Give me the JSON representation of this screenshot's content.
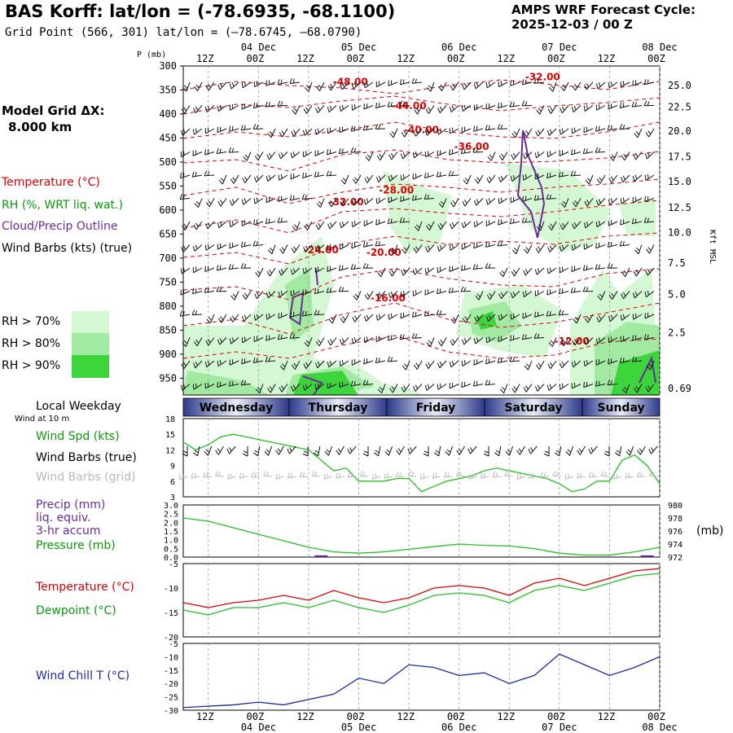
{
  "header": {
    "title": "BAS Korff:  lat/lon = (-78.6935, -68.1100)",
    "subtitle": "Grid Point (566, 301) lat/lon = (–78.6745, –68.0790)",
    "cycle_line1": "AMPS WRF Forecast Cycle:",
    "cycle_line2": "2025-12-03 / 00  Z",
    "grid_line1": "Model Grid ΔX:",
    "grid_line2": "8.000 km"
  },
  "legend": {
    "temperature": "Temperature (°C)",
    "rh": "RH (%, WRT liq. wat.)",
    "cloud": "Cloud/Precip Outline",
    "wind": "Wind Barbs (kts) (true)",
    "rh70": "RH > 70%",
    "rh80": "RH > 80%",
    "rh90": "RH > 90%",
    "color_rh70": "#d4f7d4",
    "color_rh80": "#a2eaa2",
    "color_rh90": "#3cd63c"
  },
  "time_axis": {
    "top_dates": [
      "04 Dec",
      "05 Dec",
      "06 Dec",
      "07 Dec",
      "08 Dec"
    ],
    "top_hours": [
      "12Z",
      "00Z",
      "12Z",
      "00Z",
      "12Z",
      "00Z",
      "12Z",
      "00Z",
      "12Z",
      "00Z"
    ],
    "bottom_hours": [
      "12Z",
      "00Z",
      "12Z",
      "00Z",
      "12Z",
      "00Z",
      "12Z",
      "00Z",
      "12Z",
      "00Z"
    ],
    "bottom_dates": [
      "04 Dec",
      "05 Dec",
      "06 Dec",
      "07 Dec",
      "08 Dec"
    ],
    "weekday_title": "Local Weekday",
    "weekdays": [
      "Wednesday",
      "Thursday",
      "Friday",
      "Saturday",
      "Sunday"
    ]
  },
  "labels": {
    "p_axis_title": "P (mb)",
    "height_axis_title": "Kft MSL",
    "wind10": "Wind at 10 m",
    "wind_spd": "Wind Spd (kts)",
    "wind_barbs_true": "Wind Barbs (true)",
    "wind_barbs_grid": "Wind Barbs (grid)",
    "precip1": "Precip (mm)",
    "precip2": "liq. equiv.",
    "precip3": "3-hr accum",
    "pressure": "Pressure (mb)",
    "pressure_unit": "(mb)",
    "temperature": "Temperature (°C)",
    "dewpoint": "Dewpoint (°C)",
    "windchill": "Wind Chill T (°C)"
  },
  "chart_data": [
    {
      "type": "line",
      "panel": "cross-section",
      "x_hours": [
        6,
        120
      ],
      "pressure_ticks": [
        300,
        350,
        400,
        450,
        500,
        550,
        600,
        650,
        700,
        750,
        800,
        850,
        900,
        950
      ],
      "height_ticks": [
        "25.0",
        "22.5",
        "20.0",
        "17.5",
        "15.0",
        "12.5",
        "10.0",
        "7.5",
        "5.0",
        "2.5",
        "0.69"
      ],
      "temp_labels": [
        {
          "text": "-48.00",
          "t": 46,
          "p": 340
        },
        {
          "text": "-44.00",
          "t": 60,
          "p": 390
        },
        {
          "text": "-40.00",
          "t": 63,
          "p": 440
        },
        {
          "text": "-36.00",
          "t": 75,
          "p": 475
        },
        {
          "text": "-32.00",
          "t": 92,
          "p": 330
        },
        {
          "text": "-32.00",
          "t": 45,
          "p": 590
        },
        {
          "text": "-28.00",
          "t": 57,
          "p": 565
        },
        {
          "text": "-24.00",
          "t": 39,
          "p": 690
        },
        {
          "text": "-20.00",
          "t": 54,
          "p": 695
        },
        {
          "text": "-16.00",
          "t": 55,
          "p": 790
        },
        {
          "text": "-12.00",
          "t": 99,
          "p": 880
        }
      ]
    },
    {
      "type": "line",
      "panel": "wind-speed",
      "ylim": [
        3,
        18
      ],
      "yticks": [
        3,
        6,
        9,
        12,
        15,
        18
      ],
      "x_hours": [
        6,
        9,
        12,
        15,
        18,
        21,
        24,
        27,
        30,
        33,
        36,
        39,
        42,
        45,
        48,
        51,
        54,
        57,
        60,
        63,
        66,
        69,
        72,
        75,
        78,
        81,
        84,
        87,
        90,
        93,
        96,
        99,
        102,
        105,
        108,
        111,
        114,
        117,
        120
      ],
      "series": [
        {
          "values": [
            13.5,
            12,
            13,
            14.5,
            15,
            14.5,
            14,
            13.5,
            13,
            12.5,
            12,
            10,
            8,
            8.5,
            6,
            6,
            6,
            6.5,
            6.5,
            4,
            5,
            6,
            6.5,
            7,
            8,
            8.5,
            8,
            7.5,
            7,
            6.5,
            5.5,
            4,
            4.5,
            6,
            6,
            10,
            11,
            9,
            5.5
          ]
        }
      ]
    },
    {
      "type": "line",
      "panel": "precip-pressure",
      "y_left_ticks": [
        "0.0",
        "0.5",
        "1.0",
        "1.5",
        "2.0",
        "2.5",
        "3.0"
      ],
      "y_right_ticks": [
        972,
        974,
        976,
        978,
        980
      ],
      "pressure_hours": [
        6,
        12,
        18,
        24,
        30,
        36,
        42,
        48,
        54,
        60,
        66,
        72,
        78,
        84,
        90,
        96,
        102,
        108,
        114,
        120
      ],
      "pressure_values": [
        978,
        977.5,
        976.5,
        975.5,
        974.5,
        973.5,
        972.8,
        972.6,
        972.8,
        973.2,
        973.6,
        974,
        973.8,
        973.7,
        973.3,
        972.6,
        972.3,
        972.3,
        972.8,
        973.5
      ],
      "precip_bars": [
        {
          "t": 39,
          "mm": 0.1
        },
        {
          "t": 117,
          "mm": 0.1
        }
      ]
    },
    {
      "type": "line",
      "panel": "temperature-dewpoint",
      "ylim": [
        -20,
        -5
      ],
      "x_hours": [
        6,
        12,
        18,
        24,
        30,
        36,
        42,
        48,
        54,
        60,
        66,
        72,
        78,
        84,
        90,
        96,
        102,
        108,
        114,
        120
      ],
      "series": [
        {
          "name": "Temperature",
          "values": [
            -13,
            -14,
            -13,
            -12.5,
            -11.5,
            -12.5,
            -10.5,
            -12,
            -13,
            -12,
            -10,
            -9.5,
            -10,
            -11.5,
            -9,
            -8,
            -9.5,
            -8,
            -6.5,
            -6
          ]
        },
        {
          "name": "Dewpoint",
          "values": [
            -14.5,
            -15.5,
            -14,
            -14,
            -13,
            -14,
            -12.5,
            -14,
            -15,
            -13.5,
            -11.5,
            -11,
            -11.5,
            -13,
            -10.5,
            -9.5,
            -10.5,
            -9,
            -7.5,
            -7
          ]
        }
      ]
    },
    {
      "type": "line",
      "panel": "wind-chill",
      "ylim": [
        -30,
        -5
      ],
      "yticks": [
        -30,
        -25,
        -20,
        -15,
        -10,
        -5
      ],
      "x_hours": [
        6,
        12,
        18,
        24,
        30,
        36,
        42,
        48,
        54,
        60,
        66,
        72,
        78,
        84,
        90,
        96,
        102,
        108,
        114,
        120
      ],
      "series": [
        {
          "values": [
            -29,
            -28.5,
            -28,
            -27,
            -28,
            -26,
            -24,
            -18,
            -20,
            -13,
            -14,
            -17,
            -16,
            -20,
            -17,
            -9,
            -13,
            -17,
            -14,
            -10
          ]
        }
      ]
    }
  ]
}
